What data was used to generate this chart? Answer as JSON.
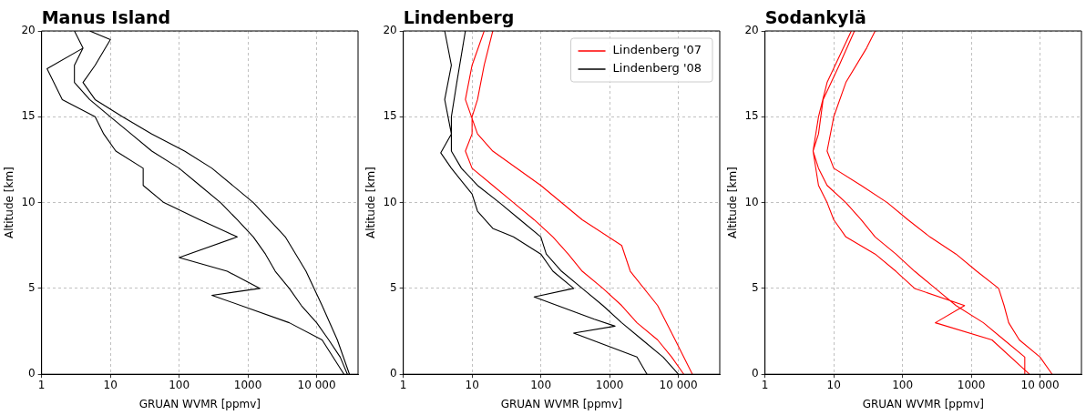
{
  "chart_data": [
    {
      "type": "line",
      "title": "Manus Island",
      "xlabel": "GRUAN WVMR [ppmv]",
      "ylabel": "Altitude [km]",
      "log": "x",
      "grid": true,
      "marker": "none",
      "xlim": [
        1,
        40000
      ],
      "xticks": [
        1,
        10,
        100,
        1000,
        10000
      ],
      "ylim": [
        0,
        20
      ],
      "yticks": [
        0,
        5,
        10,
        15,
        20
      ],
      "series": [
        {
          "color": "#000000",
          "x": [
            28000,
            22000,
            15000,
            10000,
            6000,
            4000,
            2500,
            1800,
            1200,
            700,
            400,
            200,
            100,
            40,
            20,
            10,
            5,
            3,
            3,
            4,
            3,
            null,
            25000,
            12000,
            4000,
            300,
            1500,
            500,
            100,
            700,
            200,
            60,
            30,
            30,
            12,
            8,
            6,
            2,
            1.2,
            4,
            3,
            null,
            30000,
            20000,
            12000,
            7000,
            3500,
            1200,
            300,
            120,
            40,
            15,
            6,
            4,
            6,
            10,
            5
          ],
          "values": [
            0,
            1,
            2,
            3,
            4,
            5,
            6,
            7,
            8,
            9,
            10,
            11,
            12,
            13,
            14,
            15,
            16,
            17,
            18,
            19,
            20,
            null,
            0,
            2,
            3,
            4.6,
            5,
            6,
            6.8,
            8,
            9,
            10,
            11,
            12,
            13,
            14,
            15,
            16,
            17.8,
            19,
            20,
            null,
            0,
            2,
            4,
            6,
            8,
            10,
            12,
            13,
            14,
            15,
            16,
            17,
            18,
            19.5,
            20
          ]
        }
      ]
    },
    {
      "type": "line",
      "title": "Lindenberg",
      "xlabel": "GRUAN WVMR [ppmv]",
      "ylabel": "Altitude [km]",
      "log": "x",
      "grid": true,
      "marker": "none",
      "legend": "top right",
      "xlim": [
        1,
        40000
      ],
      "xticks": [
        1,
        10,
        100,
        1000,
        10000
      ],
      "ylim": [
        0,
        20
      ],
      "yticks": [
        0,
        5,
        10,
        15,
        20
      ],
      "series": [
        {
          "name": "Lindenberg '07",
          "color": "#ff0000",
          "x": [
            12000,
            8000,
            5000,
            2500,
            1500,
            800,
            400,
            250,
            150,
            80,
            40,
            20,
            10,
            8,
            10,
            10,
            12,
            15,
            20,
            null,
            16000,
            9000,
            5000,
            2000,
            1500,
            400,
            100,
            20,
            12,
            8,
            10,
            15
          ],
          "values": [
            0,
            1,
            2,
            3,
            4,
            5,
            6,
            7,
            8,
            9,
            10,
            11,
            12,
            13,
            14,
            15,
            16,
            18,
            20,
            null,
            0,
            2,
            4,
            6,
            7.5,
            9,
            11,
            13,
            14,
            16,
            18,
            20
          ]
        },
        {
          "name": "Lindenberg '08",
          "color": "#000000",
          "x": [
            10000,
            6000,
            3000,
            1500,
            800,
            400,
            200,
            120,
            100,
            50,
            25,
            12,
            7,
            5,
            5,
            6,
            8,
            null,
            3500,
            2500,
            300,
            1200,
            600,
            80,
            300,
            150,
            100,
            40,
            20,
            12,
            10,
            5,
            3.5,
            5,
            4,
            5,
            4
          ],
          "values": [
            0,
            1,
            2,
            3,
            4,
            5,
            6,
            7,
            8,
            9,
            10,
            11,
            12,
            13,
            15,
            17,
            20,
            null,
            0,
            1,
            2.4,
            2.8,
            3.2,
            4.5,
            5,
            6,
            7,
            8,
            8.5,
            9.5,
            10.5,
            12,
            12.9,
            14,
            16,
            18,
            20
          ]
        }
      ]
    },
    {
      "type": "line",
      "title": "Sodankylä",
      "xlabel": "GRUAN WVMR [ppmv]",
      "ylabel": "Altitude [km]",
      "log": "x",
      "grid": true,
      "marker": "none",
      "xlim": [
        1,
        40000
      ],
      "xticks": [
        1,
        10,
        100,
        1000,
        10000
      ],
      "ylim": [
        0,
        20
      ],
      "yticks": [
        0,
        5,
        10,
        15,
        20
      ],
      "series": [
        {
          "color": "#ff0000",
          "x": [
            6000,
            6000,
            3000,
            1500,
            600,
            300,
            150,
            80,
            40,
            25,
            15,
            8,
            6,
            5,
            6,
            7,
            12,
            20,
            null,
            15000,
            10000,
            5000,
            3500,
            3000,
            2500,
            1200,
            600,
            250,
            120,
            60,
            25,
            10,
            8,
            10,
            15,
            30,
            40,
            null,
            7000,
            2000,
            300,
            800,
            150,
            80,
            40,
            15,
            10,
            8,
            6,
            5,
            6,
            8,
            18
          ],
          "values": [
            0,
            1,
            2,
            3,
            4,
            5,
            6,
            7,
            8,
            9,
            10,
            11,
            12,
            13,
            14,
            16,
            18,
            20,
            null,
            0,
            1,
            2,
            3,
            4,
            5,
            6,
            7,
            8,
            9,
            10,
            11,
            12,
            13,
            15,
            17,
            19,
            20,
            null,
            0,
            2,
            3,
            4,
            5,
            6,
            7,
            8,
            9,
            10,
            11,
            13,
            15,
            17,
            20
          ]
        }
      ]
    }
  ]
}
